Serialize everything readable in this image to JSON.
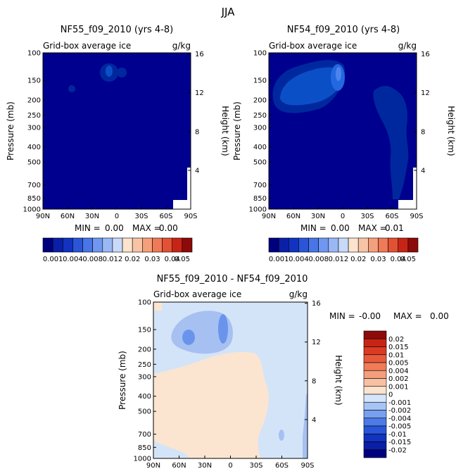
{
  "page_title": "JJA",
  "colors": {
    "ocean": "#00008f",
    "c1": "#00289e",
    "c2": "#0b4fc7",
    "c3": "#2468e0",
    "c4": "#4c84ee",
    "c5": "#78a4f2",
    "c6": "#a8c4f6",
    "c7": "#d6e6fa",
    "diff_pos": "#fbe5d0",
    "diff_neg": "#d4e4f8",
    "diff_neg2": "#a6c0f2",
    "diff_neg3": "#6a94ec"
  },
  "chart_data": [
    {
      "id": "panel1",
      "type": "contour",
      "title": "NF55_f09_2010 (yrs 4-8)",
      "left_label": "Grid-box average ice",
      "right_label": "g/kg",
      "ylabel": "Pressure (mb)",
      "y2label": "Height (km)",
      "x_ticks": [
        "90N",
        "60N",
        "30N",
        "0",
        "30S",
        "60S",
        "90S"
      ],
      "y_ticks": [
        "100",
        "150",
        "200",
        "250",
        "300",
        "400",
        "500",
        "700",
        "850",
        "1000"
      ],
      "y2_ticks": [
        "16",
        "12",
        "8",
        "4"
      ],
      "stats": {
        "min_label": "MIN =",
        "min": "0.00",
        "max_label": "MAX =",
        "max": "0.00"
      },
      "xlim": [
        90,
        -90
      ],
      "ylim": [
        100,
        1000
      ]
    },
    {
      "id": "panel2",
      "type": "contour",
      "title": "NF54_f09_2010 (yrs 4-8)",
      "left_label": "Grid-box average ice",
      "right_label": "g/kg",
      "ylabel": "Pressure (mb)",
      "y2label": "Height (km)",
      "x_ticks": [
        "90N",
        "60N",
        "30N",
        "0",
        "30S",
        "60S",
        "90S"
      ],
      "y_ticks": [
        "100",
        "150",
        "200",
        "250",
        "300",
        "400",
        "500",
        "700",
        "850",
        "1000"
      ],
      "y2_ticks": [
        "16",
        "12",
        "8",
        "4"
      ],
      "stats": {
        "min_label": "MIN =",
        "min": "0.00",
        "max_label": "MAX =",
        "max": "0.01"
      },
      "xlim": [
        90,
        -90
      ],
      "ylim": [
        100,
        1000
      ]
    },
    {
      "id": "panel3",
      "type": "contour",
      "title": "NF55_f09_2010 - NF54_f09_2010",
      "left_label": "Grid-box average ice",
      "right_label": "g/kg",
      "ylabel": "Pressure (mb)",
      "y2label": "Height (km)",
      "x_ticks": [
        "90N",
        "60N",
        "30N",
        "0",
        "30S",
        "60S",
        "90S"
      ],
      "y_ticks": [
        "100",
        "150",
        "200",
        "250",
        "300",
        "400",
        "500",
        "700",
        "850",
        "1000"
      ],
      "y2_ticks": [
        "16",
        "12",
        "8",
        "4"
      ],
      "stats": {
        "min_label": "MIN =",
        "min": "-0.00",
        "max_label": "MAX =",
        "max": "0.00"
      },
      "xlim": [
        90,
        -90
      ],
      "ylim": [
        100,
        1000
      ]
    }
  ],
  "legend_horizontal": {
    "labels": [
      "0.001",
      "0.004",
      "0.008",
      "0.012",
      "0.02",
      "0.03",
      "0.04",
      "0.05"
    ],
    "colors": [
      "#00007f",
      "#0a1fa8",
      "#1232c0",
      "#2b55d8",
      "#4876e8",
      "#6f97f0",
      "#9ab8f4",
      "#c8dafa",
      "#fbe3cd",
      "#f8c4a6",
      "#f4a07c",
      "#ee7a58",
      "#e45034",
      "#c82416",
      "#8c0a0a"
    ]
  },
  "legend_vertical": {
    "labels": [
      "0.02",
      "0.015",
      "0.01",
      "0.005",
      "0.004",
      "0.002",
      "0.001",
      "0",
      "-0.001",
      "-0.002",
      "-0.004",
      "-0.005",
      "-0.01",
      "-0.015",
      "-0.02"
    ],
    "colors": [
      "#8c0a0a",
      "#c82416",
      "#dc3a24",
      "#e85a3c",
      "#f07c58",
      "#f49e7c",
      "#f8c0a2",
      "#fbe3cd",
      "#d6e6fa",
      "#a8c4f6",
      "#78a0f0",
      "#4c7ae6",
      "#2b55d8",
      "#1232c0",
      "#0a1fa8",
      "#00007f"
    ]
  }
}
